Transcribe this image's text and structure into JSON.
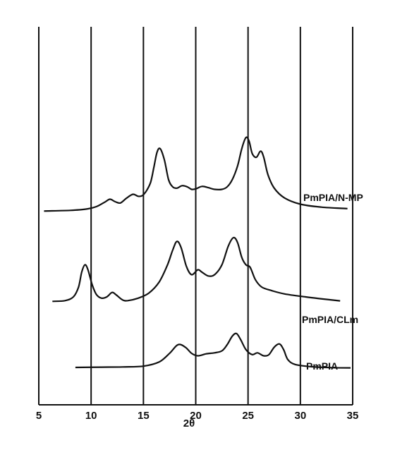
{
  "chart_data": {
    "type": "line",
    "title": "",
    "xlabel": "2θ",
    "ylabel": "",
    "xlim": [
      5,
      35
    ],
    "xticks": [
      "5",
      "10",
      "15",
      "20",
      "25",
      "30",
      "35"
    ],
    "grid": "vertical",
    "y_axis_shown": false,
    "series": [
      {
        "name": "PmPIA/N-MP",
        "label_placement": "right of curve tail",
        "points": [
          [
            5.5,
            0.02
          ],
          [
            8,
            0.05
          ],
          [
            9.5,
            0.1
          ],
          [
            10.5,
            0.2
          ],
          [
            11.3,
            0.38
          ],
          [
            11.8,
            0.5
          ],
          [
            12.3,
            0.4
          ],
          [
            12.8,
            0.35
          ],
          [
            13.4,
            0.55
          ],
          [
            14,
            0.7
          ],
          [
            14.5,
            0.62
          ],
          [
            14.9,
            0.65
          ],
          [
            15.3,
            0.85
          ],
          [
            15.7,
            1.2
          ],
          [
            16.0,
            1.8
          ],
          [
            16.3,
            2.4
          ],
          [
            16.6,
            2.55
          ],
          [
            17.0,
            2.1
          ],
          [
            17.4,
            1.3
          ],
          [
            17.8,
            1.0
          ],
          [
            18.2,
            0.95
          ],
          [
            18.7,
            1.05
          ],
          [
            19.2,
            1.0
          ],
          [
            19.6,
            0.9
          ],
          [
            20.0,
            0.92
          ],
          [
            20.6,
            1.02
          ],
          [
            21.2,
            0.97
          ],
          [
            21.8,
            0.9
          ],
          [
            22.5,
            0.9
          ],
          [
            23.0,
            1.0
          ],
          [
            23.5,
            1.3
          ],
          [
            24.0,
            1.85
          ],
          [
            24.4,
            2.55
          ],
          [
            24.8,
            3.0
          ],
          [
            25.1,
            2.85
          ],
          [
            25.4,
            2.35
          ],
          [
            25.8,
            2.2
          ],
          [
            26.2,
            2.45
          ],
          [
            26.5,
            2.2
          ],
          [
            26.9,
            1.5
          ],
          [
            27.5,
            0.95
          ],
          [
            28.5,
            0.55
          ],
          [
            30,
            0.3
          ],
          [
            32,
            0.18
          ],
          [
            34.5,
            0.12
          ]
        ]
      },
      {
        "name": "PmPIA/CLm",
        "label_placement": "right of curve tail",
        "points": [
          [
            6.3,
            0.02
          ],
          [
            7.5,
            0.05
          ],
          [
            8.3,
            0.2
          ],
          [
            8.8,
            0.6
          ],
          [
            9.1,
            1.2
          ],
          [
            9.4,
            1.5
          ],
          [
            9.7,
            1.3
          ],
          [
            10.1,
            0.7
          ],
          [
            10.5,
            0.3
          ],
          [
            11.0,
            0.15
          ],
          [
            11.5,
            0.2
          ],
          [
            12.0,
            0.38
          ],
          [
            12.4,
            0.28
          ],
          [
            13.0,
            0.08
          ],
          [
            13.5,
            0.05
          ],
          [
            14.5,
            0.15
          ],
          [
            15.5,
            0.35
          ],
          [
            16.5,
            0.8
          ],
          [
            17.3,
            1.5
          ],
          [
            17.8,
            2.1
          ],
          [
            18.2,
            2.45
          ],
          [
            18.6,
            2.2
          ],
          [
            19.1,
            1.45
          ],
          [
            19.6,
            1.1
          ],
          [
            20.2,
            1.3
          ],
          [
            20.6,
            1.2
          ],
          [
            21.2,
            1.05
          ],
          [
            21.8,
            1.1
          ],
          [
            22.5,
            1.5
          ],
          [
            23.1,
            2.25
          ],
          [
            23.6,
            2.6
          ],
          [
            24.0,
            2.4
          ],
          [
            24.4,
            1.8
          ],
          [
            24.8,
            1.5
          ],
          [
            25.2,
            1.4
          ],
          [
            25.7,
            0.9
          ],
          [
            26.3,
            0.6
          ],
          [
            27.3,
            0.45
          ],
          [
            28.5,
            0.32
          ],
          [
            30.5,
            0.2
          ],
          [
            32.5,
            0.1
          ],
          [
            33.8,
            0.04
          ]
        ]
      },
      {
        "name": "PmPIA",
        "label_placement": "right of curve tail",
        "points": [
          [
            8.5,
            0.03
          ],
          [
            11,
            0.04
          ],
          [
            13,
            0.05
          ],
          [
            15,
            0.08
          ],
          [
            16.5,
            0.25
          ],
          [
            17.5,
            0.6
          ],
          [
            18.3,
            0.95
          ],
          [
            19.0,
            0.85
          ],
          [
            19.6,
            0.6
          ],
          [
            20.2,
            0.5
          ],
          [
            21.0,
            0.58
          ],
          [
            21.8,
            0.62
          ],
          [
            22.5,
            0.7
          ],
          [
            23.0,
            0.95
          ],
          [
            23.5,
            1.3
          ],
          [
            23.9,
            1.4
          ],
          [
            24.3,
            1.15
          ],
          [
            24.8,
            0.75
          ],
          [
            25.4,
            0.55
          ],
          [
            25.9,
            0.62
          ],
          [
            26.5,
            0.5
          ],
          [
            27.0,
            0.55
          ],
          [
            27.5,
            0.85
          ],
          [
            28.0,
            0.98
          ],
          [
            28.4,
            0.75
          ],
          [
            28.8,
            0.35
          ],
          [
            29.5,
            0.15
          ],
          [
            31,
            0.06
          ],
          [
            33,
            0.02
          ],
          [
            34.8,
            0.01
          ]
        ]
      }
    ]
  }
}
